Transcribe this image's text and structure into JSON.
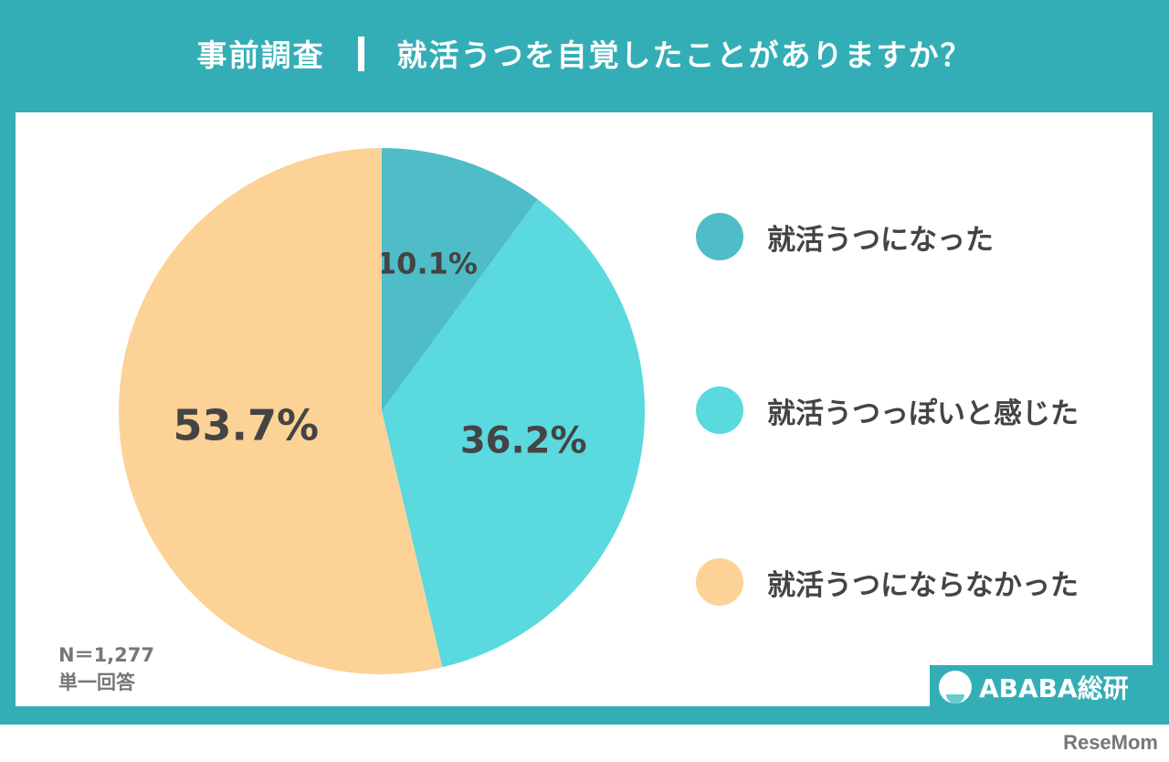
{
  "header": {
    "label": "事前調査",
    "question": "就活うつを自覚したことがありますか？"
  },
  "chart_data": {
    "type": "pie",
    "categories": [
      "就活うつになった",
      "就活うつっぽいと感じた",
      "就活うつにならなかった"
    ],
    "values": [
      10.1,
      36.2,
      53.7
    ],
    "labels": [
      "10.1%",
      "36.2%",
      "53.7%"
    ],
    "colors": [
      "#4fbdc8",
      "#5ad9de",
      "#fdd296"
    ],
    "legend": "right"
  },
  "notes": {
    "n": "N＝1,277",
    "type": "単一回答"
  },
  "logo": "ABABA総研",
  "watermark": "ReseMom"
}
